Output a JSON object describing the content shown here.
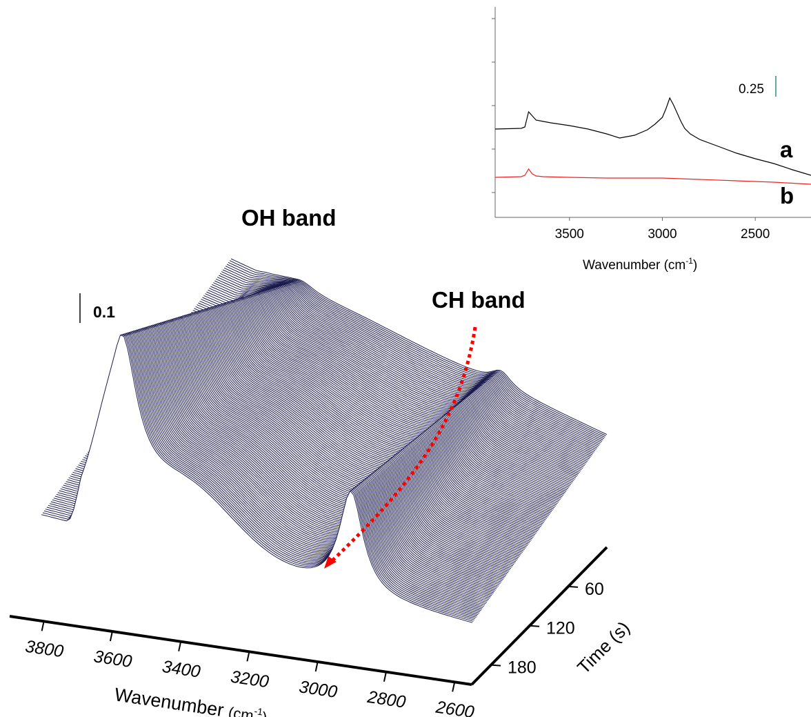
{
  "chart_data": [
    {
      "type": "line",
      "subtype": "waterfall-3d",
      "annotations": {
        "oh_band": "OH band",
        "ch_band": "CH band",
        "scale_bar": "0.1"
      },
      "x_axis": {
        "label_main": "Wavenumber",
        "label_unit_open": "(cm",
        "label_unit_sup": "-1",
        "label_unit_close": ")",
        "ticks": [
          "3800",
          "3600",
          "3400",
          "3200",
          "3000",
          "2800",
          "2600"
        ],
        "range": [
          3900,
          2550
        ],
        "reversed": true
      },
      "z_axis": {
        "label": "Time (s)",
        "ticks": [
          "60",
          "120",
          "180"
        ],
        "range": [
          0,
          210
        ]
      },
      "series_count": 140,
      "spectrum_model": {
        "oh_peak_wavenumber": 3650,
        "ch_peak_wavenumber": 2930,
        "oh_peak_absorbance_start": 0.36,
        "oh_peak_absorbance_end": 0.02,
        "ch_peak_absorbance_start": 0.21,
        "ch_peak_absorbance_end": 0.03
      },
      "colors": {
        "spectra": "#1a1a4d",
        "arrow": "#ff0000"
      }
    },
    {
      "type": "line",
      "subtype": "inset",
      "xlabel_main": "Wavenumber",
      "xlabel_unit_open": "(cm",
      "xlabel_unit_sup": "-1",
      "xlabel_unit_close": ")",
      "xticks": [
        "3500",
        "3000",
        "2500"
      ],
      "xlim": [
        3900,
        2200
      ],
      "scale_bar": "0.25",
      "series": [
        {
          "name": "a",
          "color": "#000000",
          "x": [
            3900,
            3760,
            3740,
            3720,
            3700,
            3680,
            3640,
            3600,
            3500,
            3400,
            3300,
            3230,
            3150,
            3080,
            3040,
            3000,
            2980,
            2960,
            2940,
            2920,
            2900,
            2880,
            2850,
            2800,
            2700,
            2600,
            2500,
            2400,
            2300,
            2200
          ],
          "y": [
            0.55,
            0.56,
            0.58,
            0.8,
            0.74,
            0.68,
            0.66,
            0.64,
            0.6,
            0.55,
            0.48,
            0.42,
            0.46,
            0.54,
            0.62,
            0.72,
            0.85,
            1.0,
            0.9,
            0.78,
            0.66,
            0.56,
            0.48,
            0.4,
            0.3,
            0.2,
            0.12,
            0.05,
            -0.04,
            -0.12
          ]
        },
        {
          "name": "b",
          "color": "#ee2222",
          "x": [
            3900,
            3760,
            3740,
            3720,
            3700,
            3680,
            3640,
            3500,
            3300,
            3000,
            2800,
            2600,
            2400,
            2200
          ],
          "y": [
            0.0,
            0.01,
            0.03,
            0.12,
            0.05,
            0.02,
            0.01,
            0.0,
            -0.01,
            -0.01,
            -0.03,
            -0.05,
            -0.07,
            -0.1
          ]
        }
      ]
    }
  ]
}
